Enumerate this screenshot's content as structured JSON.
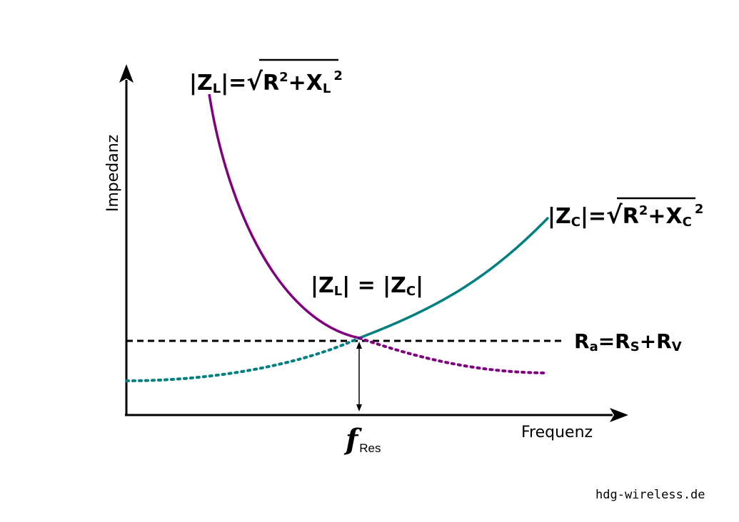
{
  "colors": {
    "inductive": "#800080",
    "capacitive": "#00807f",
    "axis": "#000000",
    "background": "#ffffff"
  },
  "axes": {
    "y_label": "Impedanz",
    "x_label": "Frequenz"
  },
  "labels": {
    "zl_formula": {
      "lhs": "|Z",
      "lhs_sub": "L",
      "lhs_end": "|=",
      "sqrt": "√",
      "r": "R",
      "r_sup": "2",
      "plus": "+X",
      "x_sub": "L",
      "x_sup": "2"
    },
    "zc_formula": {
      "lhs": "|Z",
      "lhs_sub": "C",
      "lhs_end": "|=",
      "sqrt": "√",
      "r": "R",
      "r_sup": "2",
      "plus": "+X",
      "x_sub": "C",
      "x_sup": "2"
    },
    "equality": {
      "a": "|Z",
      "a_sub": "L",
      "mid": "| = |Z",
      "b_sub": "C",
      "end": "|"
    },
    "resistance": {
      "r": "R",
      "r_sub": "a",
      "eq": "=R",
      "s_sub": "S",
      "plus": "+R",
      "v_sub": "V"
    },
    "fres": {
      "f": "f",
      "sub": "Res"
    }
  },
  "credit": "hdg-wireless.de"
}
